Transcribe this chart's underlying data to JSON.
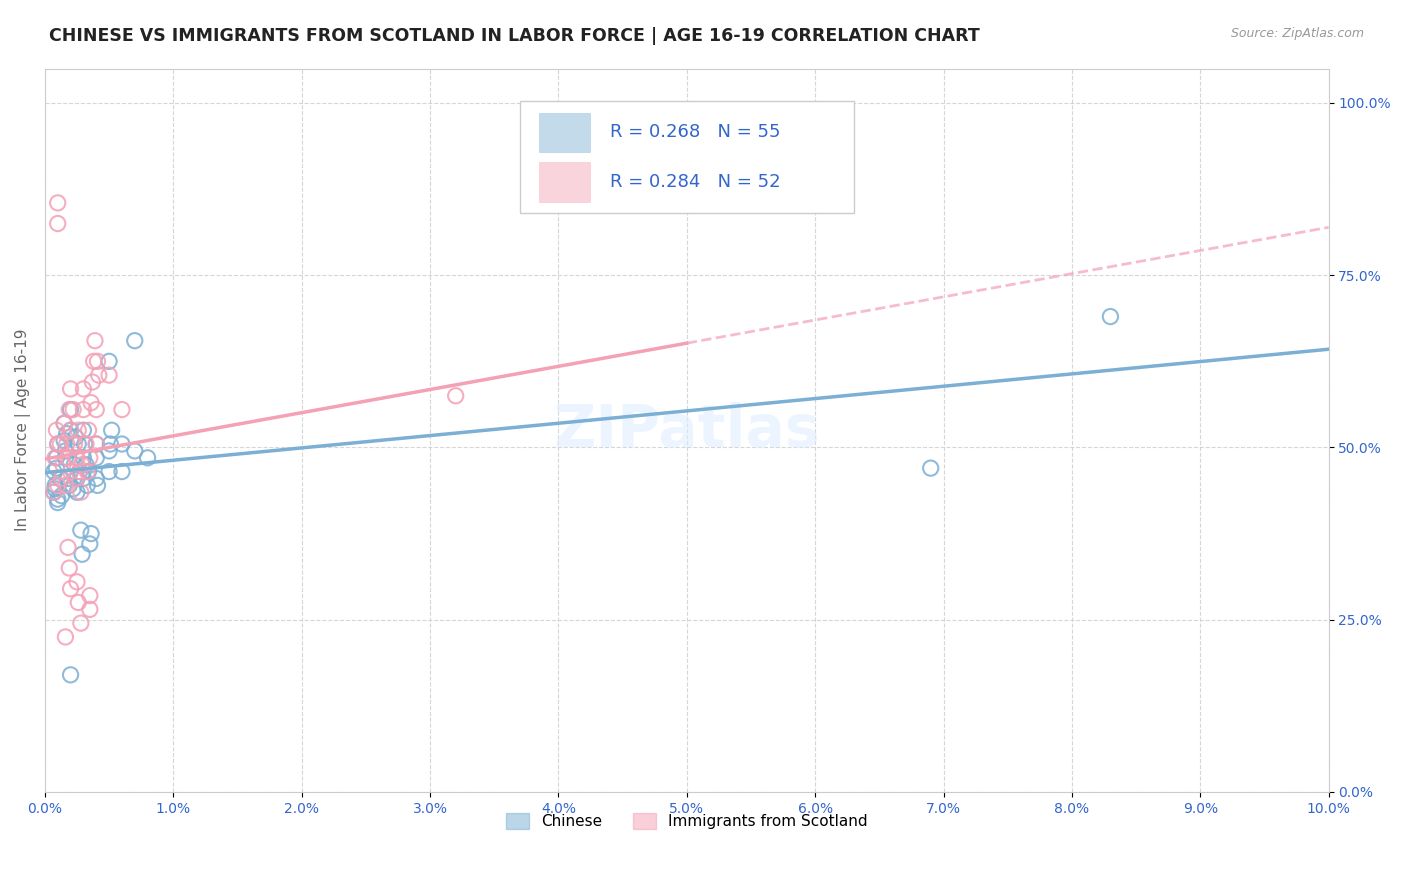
{
  "title": "CHINESE VS IMMIGRANTS FROM SCOTLAND IN LABOR FORCE | AGE 16-19 CORRELATION CHART",
  "source": "Source: ZipAtlas.com",
  "ylabel": "In Labor Force | Age 16-19",
  "xlim": [
    0.0,
    0.1
  ],
  "ylim": [
    0.0,
    1.05
  ],
  "xticks": [
    0.0,
    0.01,
    0.02,
    0.03,
    0.04,
    0.05,
    0.06,
    0.07,
    0.08,
    0.09,
    0.1
  ],
  "xticklabels": [
    "0.0%",
    "1.0%",
    "2.0%",
    "3.0%",
    "4.0%",
    "5.0%",
    "6.0%",
    "7.0%",
    "8.0%",
    "9.0%",
    "10.0%"
  ],
  "yticks": [
    0.0,
    0.25,
    0.5,
    0.75,
    1.0
  ],
  "yticklabels": [
    "0.0%",
    "25.0%",
    "50.0%",
    "75.0%",
    "100.0%"
  ],
  "chinese_color": "#7bafd4",
  "scotland_color": "#f4a0b5",
  "chinese_R": 0.268,
  "chinese_N": 55,
  "scotland_R": 0.284,
  "scotland_N": 52,
  "text_color": "#3366cc",
  "watermark": "ZIPatlas",
  "chinese_scatter": [
    [
      0.0008,
      0.44
    ],
    [
      0.0009,
      0.47
    ],
    [
      0.001,
      0.505
    ],
    [
      0.001,
      0.42
    ],
    [
      0.0012,
      0.455
    ],
    [
      0.0013,
      0.43
    ],
    [
      0.0015,
      0.51
    ],
    [
      0.0016,
      0.485
    ],
    [
      0.0017,
      0.52
    ],
    [
      0.0018,
      0.455
    ],
    [
      0.0019,
      0.445
    ],
    [
      0.002,
      0.525
    ],
    [
      0.0022,
      0.44
    ],
    [
      0.0023,
      0.475
    ],
    [
      0.0024,
      0.515
    ],
    [
      0.0025,
      0.455
    ],
    [
      0.0025,
      0.435
    ],
    [
      0.0026,
      0.505
    ],
    [
      0.0027,
      0.465
    ],
    [
      0.003,
      0.485
    ],
    [
      0.003,
      0.455
    ],
    [
      0.003,
      0.525
    ],
    [
      0.0031,
      0.505
    ],
    [
      0.0032,
      0.475
    ],
    [
      0.0033,
      0.445
    ],
    [
      0.0034,
      0.465
    ],
    [
      0.004,
      0.505
    ],
    [
      0.004,
      0.455
    ],
    [
      0.004,
      0.485
    ],
    [
      0.0041,
      0.445
    ],
    [
      0.005,
      0.495
    ],
    [
      0.005,
      0.465
    ],
    [
      0.005,
      0.625
    ],
    [
      0.0051,
      0.505
    ],
    [
      0.0052,
      0.525
    ],
    [
      0.006,
      0.505
    ],
    [
      0.006,
      0.465
    ],
    [
      0.007,
      0.495
    ],
    [
      0.007,
      0.655
    ],
    [
      0.008,
      0.485
    ],
    [
      0.0028,
      0.38
    ],
    [
      0.0029,
      0.345
    ],
    [
      0.0035,
      0.36
    ],
    [
      0.0036,
      0.375
    ],
    [
      0.002,
      0.17
    ],
    [
      0.0007,
      0.435
    ],
    [
      0.0007,
      0.465
    ],
    [
      0.0008,
      0.445
    ],
    [
      0.0009,
      0.485
    ],
    [
      0.001,
      0.425
    ],
    [
      0.0015,
      0.535
    ],
    [
      0.0016,
      0.495
    ],
    [
      0.002,
      0.555
    ],
    [
      0.083,
      0.69
    ],
    [
      0.069,
      0.47
    ]
  ],
  "scotland_scatter": [
    [
      0.0007,
      0.435
    ],
    [
      0.0008,
      0.485
    ],
    [
      0.0009,
      0.525
    ],
    [
      0.001,
      0.445
    ],
    [
      0.001,
      0.505
    ],
    [
      0.0012,
      0.505
    ],
    [
      0.0013,
      0.455
    ],
    [
      0.0014,
      0.475
    ],
    [
      0.0015,
      0.535
    ],
    [
      0.0016,
      0.445
    ],
    [
      0.0017,
      0.505
    ],
    [
      0.0018,
      0.485
    ],
    [
      0.0019,
      0.555
    ],
    [
      0.002,
      0.465
    ],
    [
      0.002,
      0.525
    ],
    [
      0.002,
      0.585
    ],
    [
      0.0022,
      0.555
    ],
    [
      0.0023,
      0.505
    ],
    [
      0.0024,
      0.455
    ],
    [
      0.0025,
      0.485
    ],
    [
      0.0026,
      0.525
    ],
    [
      0.0027,
      0.465
    ],
    [
      0.0028,
      0.435
    ],
    [
      0.0029,
      0.475
    ],
    [
      0.003,
      0.555
    ],
    [
      0.003,
      0.585
    ],
    [
      0.0032,
      0.505
    ],
    [
      0.0033,
      0.465
    ],
    [
      0.0034,
      0.525
    ],
    [
      0.0035,
      0.485
    ],
    [
      0.0036,
      0.565
    ],
    [
      0.0037,
      0.595
    ],
    [
      0.0038,
      0.625
    ],
    [
      0.0039,
      0.655
    ],
    [
      0.004,
      0.505
    ],
    [
      0.004,
      0.555
    ],
    [
      0.0041,
      0.625
    ],
    [
      0.0042,
      0.605
    ],
    [
      0.0025,
      0.305
    ],
    [
      0.0026,
      0.275
    ],
    [
      0.0035,
      0.285
    ],
    [
      0.0018,
      0.355
    ],
    [
      0.0019,
      0.325
    ],
    [
      0.002,
      0.295
    ],
    [
      0.0028,
      0.245
    ],
    [
      0.0035,
      0.265
    ],
    [
      0.0016,
      0.225
    ],
    [
      0.001,
      0.855
    ],
    [
      0.001,
      0.825
    ],
    [
      0.005,
      0.605
    ],
    [
      0.006,
      0.555
    ],
    [
      0.032,
      0.575
    ]
  ]
}
